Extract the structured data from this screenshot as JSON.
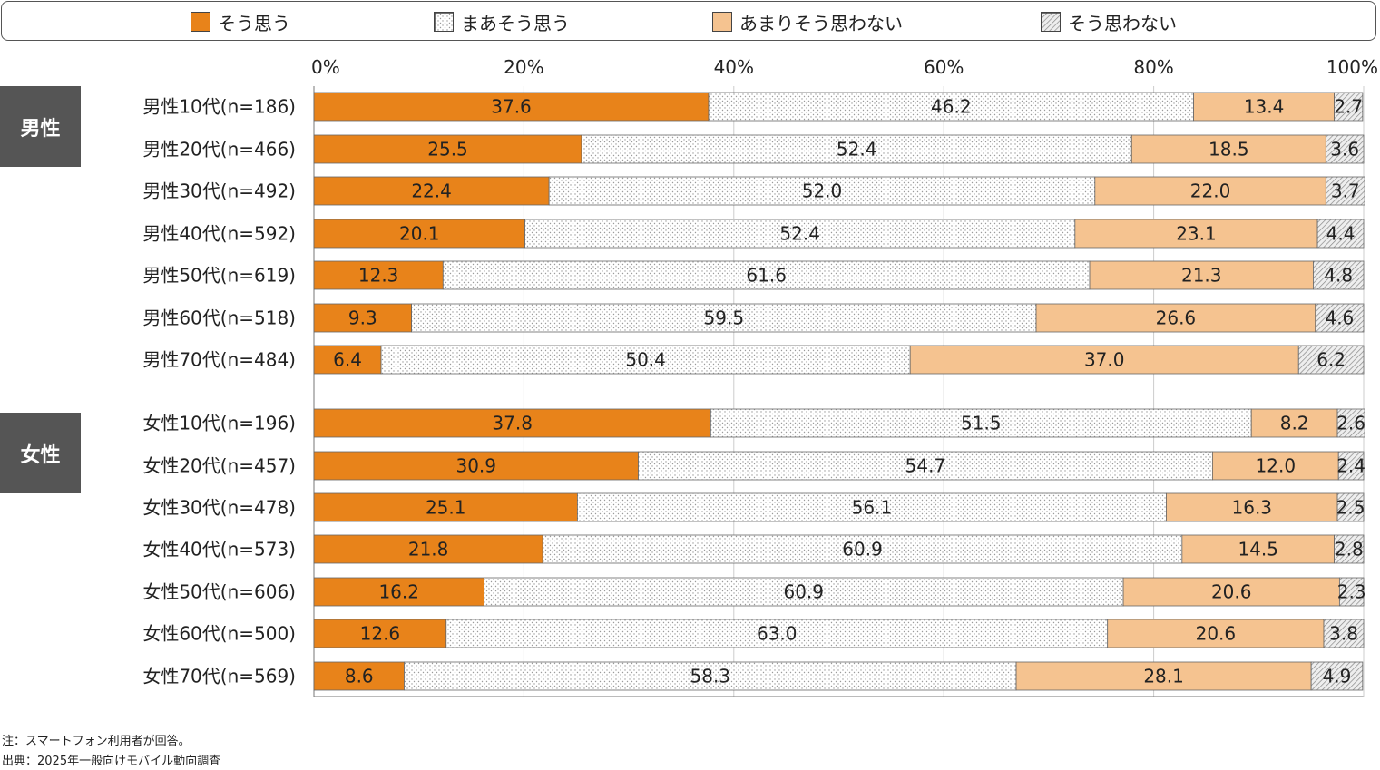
{
  "legend": [
    {
      "label": "そう思う",
      "key": "s1"
    },
    {
      "label": "まあそう思う",
      "key": "s2"
    },
    {
      "label": "あまりそう思わない",
      "key": "s3"
    },
    {
      "label": "そう思わない",
      "key": "s4"
    }
  ],
  "colors": {
    "s1": "#e8831a",
    "s2": "#ffffff",
    "s3": "#f5c390",
    "s4": "#eeeeee",
    "dots": "#9a9a9a",
    "hatch": "#888888",
    "grid": "#cccccc",
    "axis": "#777777"
  },
  "groups": [
    {
      "label": "男性"
    },
    {
      "label": "女性"
    }
  ],
  "notes": {
    "note1": "注：スマートフォン利用者が回答。",
    "note2": "出典：2025年一般向けモバイル動向調査"
  },
  "chart_data": {
    "type": "bar",
    "orientation": "horizontal",
    "stacked": true,
    "percent": true,
    "xlim": [
      0,
      100
    ],
    "xticks": [
      "0%",
      "20%",
      "40%",
      "60%",
      "80%",
      "100%"
    ],
    "series": [
      {
        "name": "そう思う",
        "values": [
          37.6,
          25.5,
          22.4,
          20.1,
          12.3,
          9.3,
          6.4,
          37.8,
          30.9,
          25.1,
          21.8,
          16.2,
          12.6,
          8.6
        ]
      },
      {
        "name": "まあそう思う",
        "values": [
          46.2,
          52.4,
          52.0,
          52.4,
          61.6,
          59.5,
          50.4,
          51.5,
          54.7,
          56.1,
          60.9,
          60.9,
          63.0,
          58.3
        ]
      },
      {
        "name": "あまりそう思わない",
        "values": [
          13.4,
          18.5,
          22.0,
          23.1,
          21.3,
          26.6,
          37.0,
          8.2,
          12.0,
          16.3,
          14.5,
          20.6,
          20.6,
          28.1
        ]
      },
      {
        "name": "そう思わない",
        "values": [
          2.7,
          3.6,
          3.7,
          4.4,
          4.8,
          4.6,
          6.2,
          2.6,
          2.4,
          2.5,
          2.8,
          2.3,
          3.8,
          4.9
        ]
      }
    ],
    "categories": [
      "男性10代(n=186)",
      "男性20代(n=466)",
      "男性30代(n=492)",
      "男性40代(n=592)",
      "男性50代(n=619)",
      "男性60代(n=518)",
      "男性70代(n=484)",
      "女性10代(n=196)",
      "女性20代(n=457)",
      "女性30代(n=478)",
      "女性40代(n=573)",
      "女性50代(n=606)",
      "女性60代(n=500)",
      "女性70代(n=569)"
    ]
  }
}
